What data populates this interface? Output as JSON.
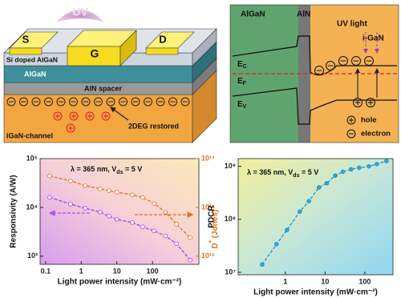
{
  "device": {
    "uv": "UV",
    "contacts": [
      "S",
      "G",
      "D"
    ],
    "layers": [
      "Si doped AlGaN",
      "AlGaN",
      "AlN spacer",
      "iGaN-channel"
    ],
    "annotation": "2DEG restored"
  },
  "band": {
    "regions": [
      "AlGaN",
      "AlN",
      "i-GaN"
    ],
    "uv": "UV light",
    "levels": [
      [
        "E",
        "C"
      ],
      [
        "E",
        "F"
      ],
      [
        "E",
        "V"
      ]
    ],
    "legend": [
      "hole",
      "electron"
    ]
  },
  "chart_data": [
    {
      "type": "line",
      "annotation": [
        "λ = 365 nm, V",
        "ds",
        " = 5 V"
      ],
      "xlabel": "Light power intensity (mW·cm⁻²)",
      "ylabel": "Responsivity (A/W)",
      "y2label": [
        "D",
        "*",
        " (Jones)"
      ],
      "log_x": true,
      "log_y": true,
      "x": [
        0.13,
        0.5,
        1.3,
        3.4,
        6,
        10,
        27,
        53,
        110,
        230,
        470,
        1140
      ],
      "series": [
        {
          "color": "#a040e0",
          "marker_color": "#ffffff",
          "values": [
            16000,
            11700,
            9600,
            8000,
            6600,
            5700,
            4900,
            4000,
            3300,
            2600,
            1800,
            830
          ]
        },
        {
          "color": "#e0701c",
          "marker_color": "#ffffff",
          "axis": "y2",
          "values": [
            4.4e+16,
            3.5e+16,
            2.8e+16,
            2.4e+16,
            2.2e+16,
            2.05e+16,
            1.8e+16,
            1.6e+16,
            1.2e+16,
            8000000000000000.0,
            4500000000000000.0,
            2400000000000000.0
          ]
        }
      ],
      "xlim": [
        0.07,
        2000
      ],
      "xticks": [
        0.1,
        1,
        10,
        100
      ],
      "ylim": [
        680,
        100000
      ],
      "yticks": [
        {
          "value": 1000,
          "label": "10³"
        },
        {
          "value": 10000,
          "label": "10⁴"
        },
        {
          "value": 100000,
          "label": "10⁵"
        }
      ],
      "y2lim": [
        680000000000000.0,
        1e+17
      ],
      "y2ticks": [
        {
          "value": 1000000000000000.0,
          "label": "10¹⁵"
        },
        {
          "value": 1e+16,
          "label": "10¹⁶"
        },
        {
          "value": 1e+17,
          "label": "10¹⁷"
        }
      ]
    },
    {
      "type": "line",
      "annotation": [
        "λ = 365 nm, V",
        "ds",
        " = 5 V"
      ],
      "xlabel": "Light power intensity (mW·cm⁻²)",
      "ylabel": "PDCR",
      "log_x": true,
      "log_y": true,
      "x": [
        0.26,
        0.6,
        1.1,
        2.3,
        3.9,
        7,
        11,
        18,
        28,
        45,
        72,
        126,
        200,
        350
      ],
      "series": [
        {
          "color": "#2a8fc0",
          "marker_color": "#2aa8d8",
          "values": [
            14000000,
            34000000,
            63000000,
            140000000,
            220000000,
            400000000,
            480000000,
            670000000,
            790000000,
            880000000,
            940000000,
            1000000000,
            1100000000,
            1260000000
          ]
        }
      ],
      "xlim": [
        0.065,
        510
      ],
      "xticks": [
        1,
        10,
        100
      ],
      "ylim": [
        9000000,
        1400000000
      ],
      "yticks": [
        {
          "value": 10000000,
          "label": "10⁷"
        },
        {
          "value": 100000000,
          "label": "10⁸"
        },
        {
          "value": 1000000000,
          "label": "10⁹"
        }
      ]
    }
  ]
}
